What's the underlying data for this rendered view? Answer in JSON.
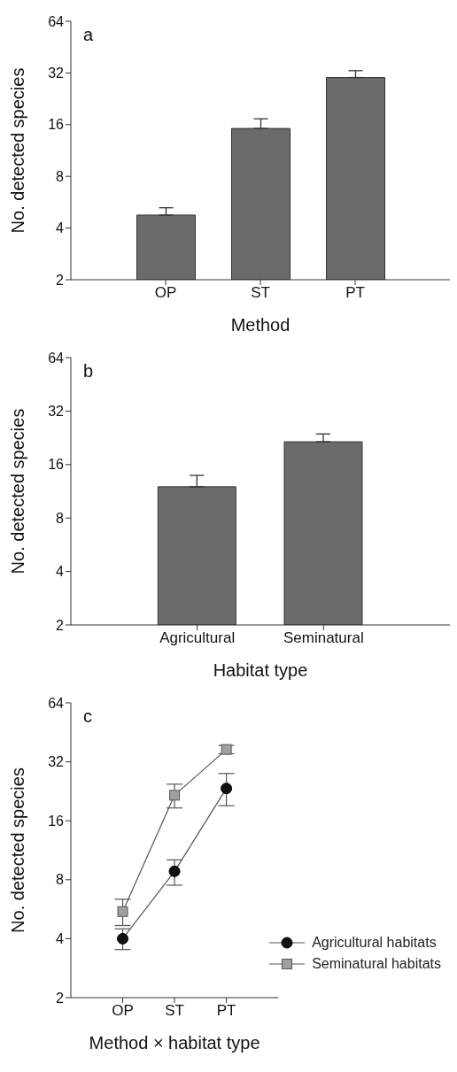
{
  "chart_data": [
    {
      "type": "bar",
      "title": "a",
      "xlabel": "Method",
      "ylabel": "No. detected species",
      "categories": [
        "OP",
        "ST",
        "PT"
      ],
      "values": [
        4.76,
        15.2,
        30.1
      ],
      "errors": [
        [
          4.76,
          5.25
        ],
        [
          15.2,
          17.3
        ],
        [
          30.1,
          33.0
        ]
      ],
      "color": "#6b6b6b",
      "log": "y",
      "ylim": [
        2,
        64
      ],
      "yticks": [
        2,
        4,
        8,
        16,
        32,
        64
      ],
      "grid": false,
      "legend": false
    },
    {
      "type": "bar",
      "title": "b",
      "xlabel": "Habitat type",
      "ylabel": "No. detected species",
      "categories": [
        "Agricultural",
        "Seminatural"
      ],
      "values": [
        12.0,
        21.5
      ],
      "errors": [
        [
          12.0,
          13.9
        ],
        [
          21.5,
          23.8
        ]
      ],
      "color": "#6b6b6b",
      "log": "y",
      "ylim": [
        2,
        64
      ],
      "yticks": [
        2,
        4,
        8,
        16,
        32,
        64
      ],
      "grid": false,
      "legend": false
    },
    {
      "type": "line",
      "title": "c",
      "xlabel": "Method × habitat type",
      "ylabel": "No. detected species",
      "categories": [
        "OP",
        "ST",
        "PT"
      ],
      "log": "y",
      "ylim": [
        2,
        64
      ],
      "yticks": [
        2,
        4,
        8,
        16,
        32,
        64
      ],
      "grid": false,
      "legend": "bottom right",
      "series": [
        {
          "name": "Agricultural habitats",
          "color": "#111111",
          "marker": "circle",
          "values": [
            4.0,
            8.83,
            23.4
          ],
          "errors": [
            [
              3.52,
              4.49
            ],
            [
              7.5,
              10.1
            ],
            [
              19.1,
              27.9
            ]
          ]
        },
        {
          "name": "Seminatural habitats",
          "color": "#a0a0a0",
          "marker": "square",
          "values": [
            5.5,
            21.6,
            37.0
          ],
          "errors": [
            [
              4.67,
              6.36
            ],
            [
              18.6,
              24.6
            ],
            [
              35.2,
              38.8
            ]
          ]
        }
      ]
    }
  ]
}
